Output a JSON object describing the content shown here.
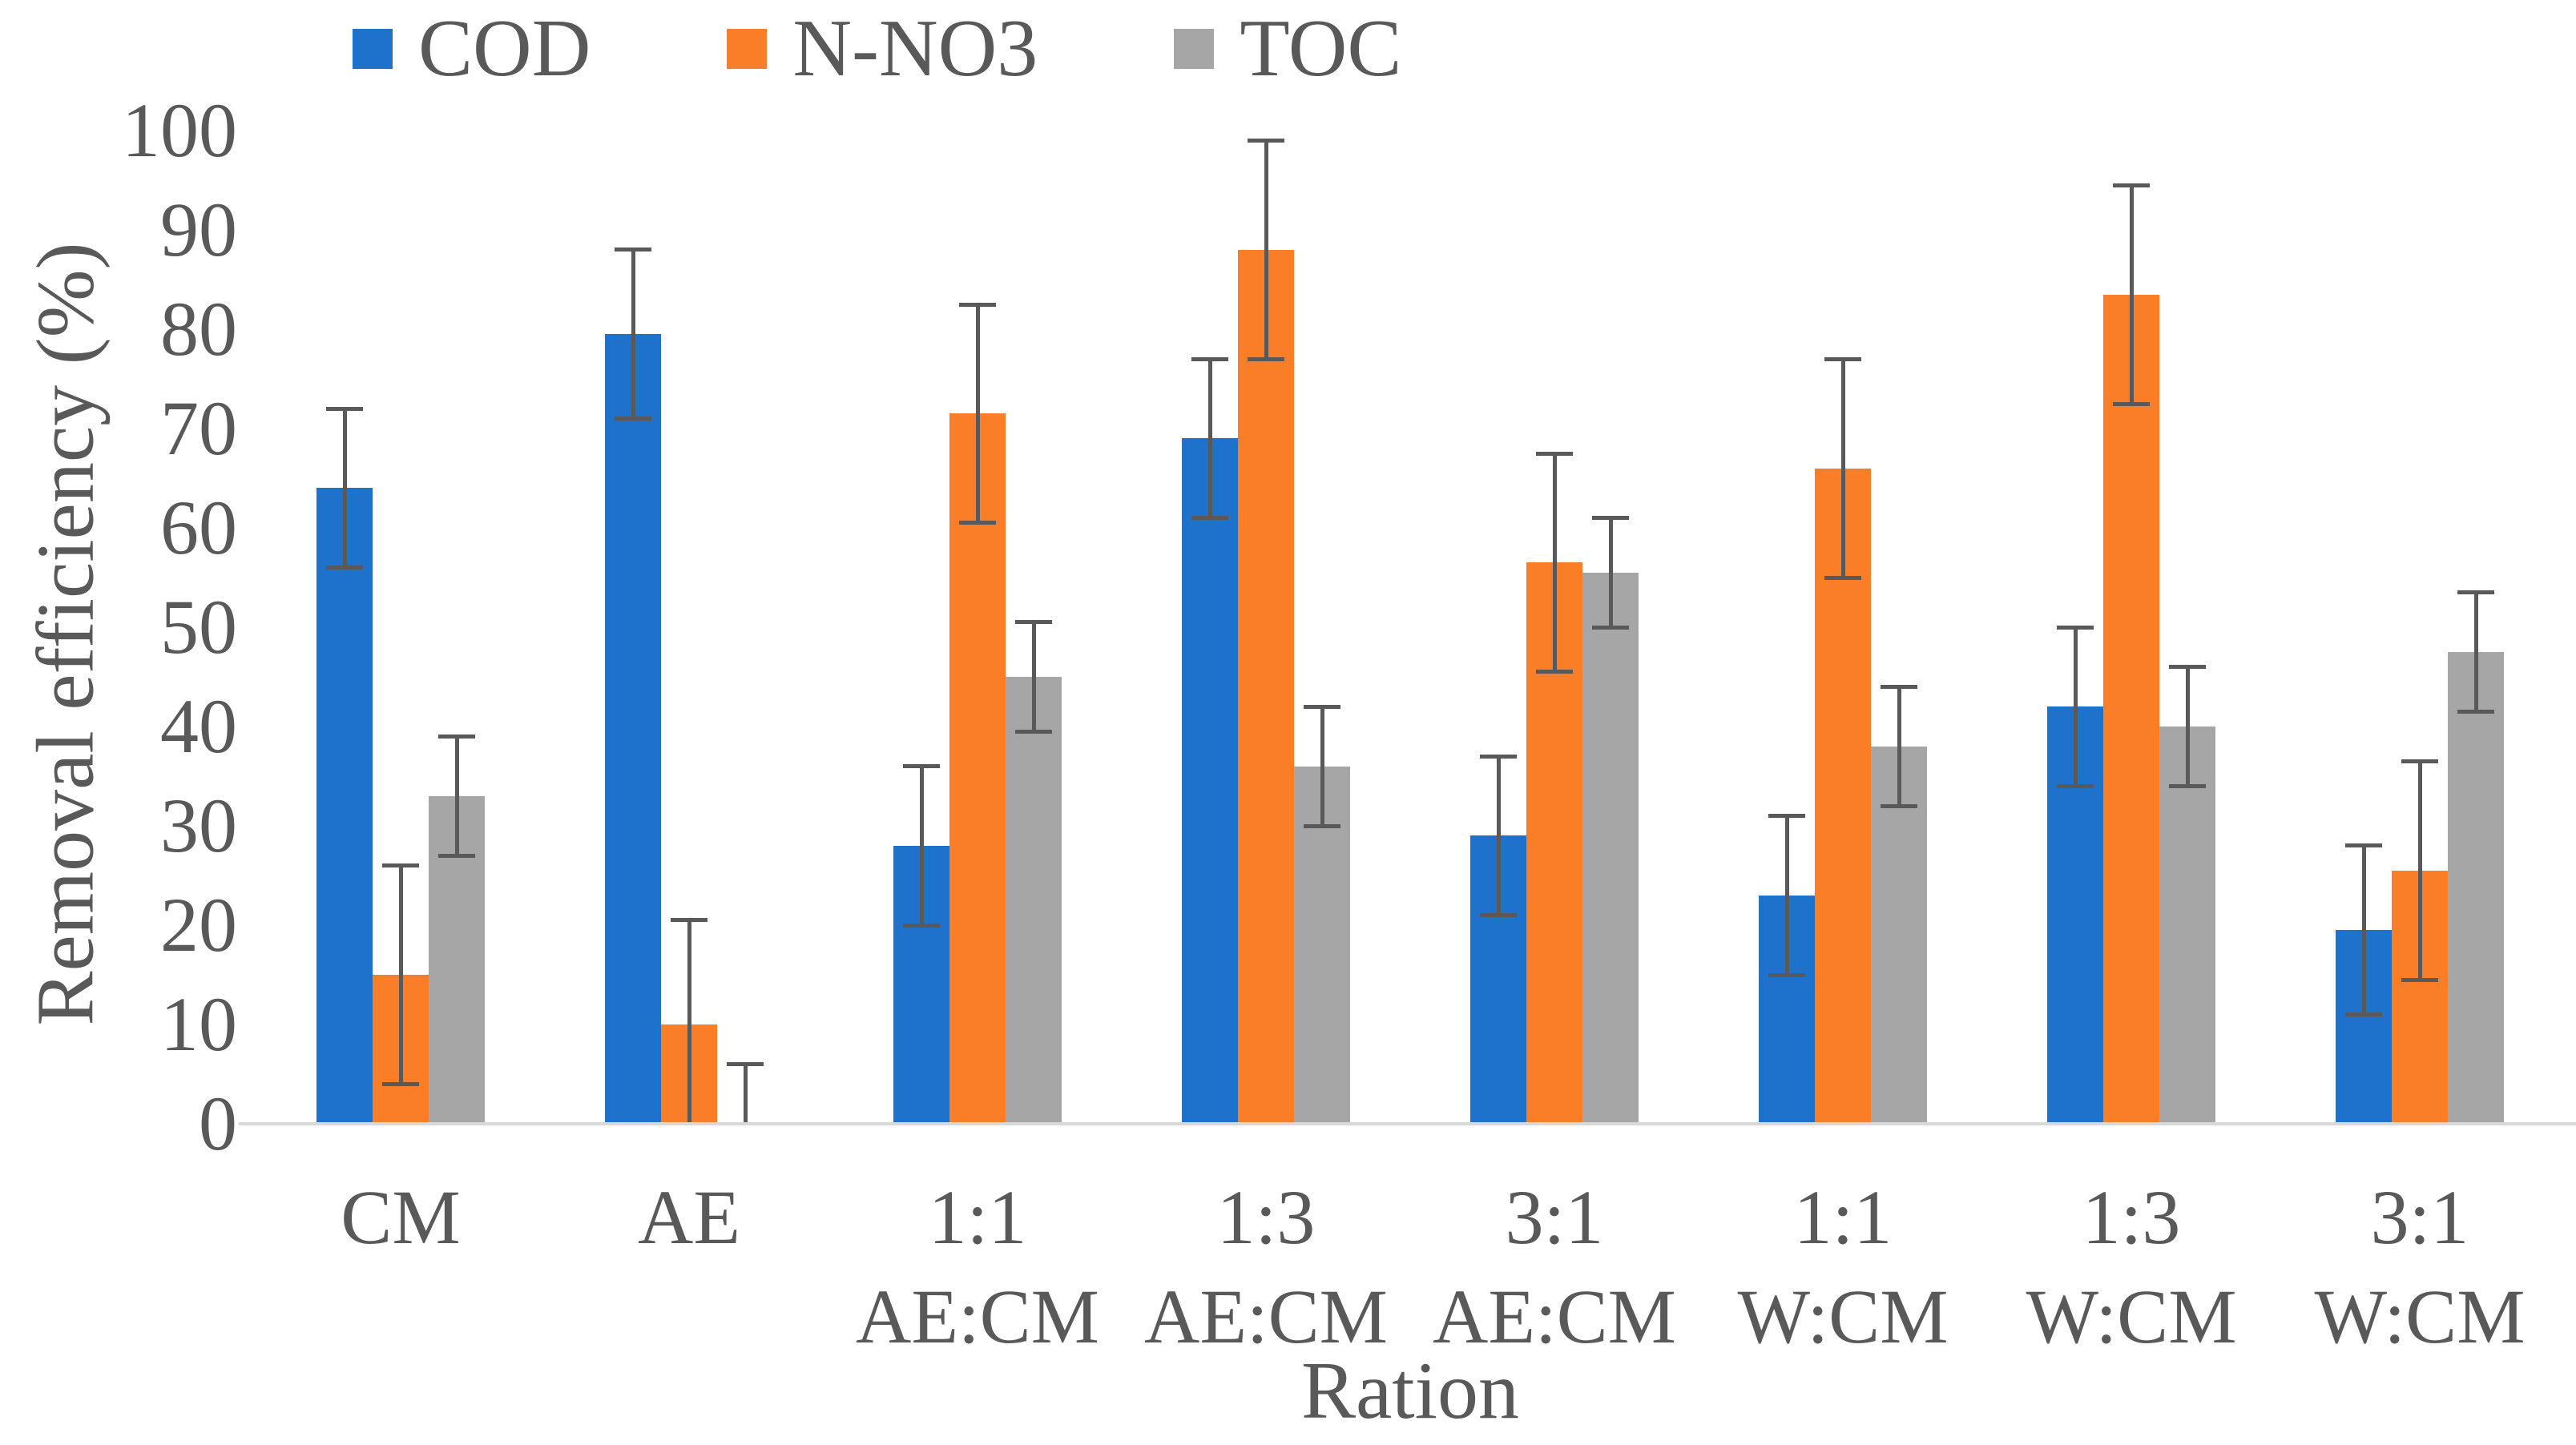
{
  "chart_data": {
    "type": "bar",
    "title": "",
    "xlabel": "Ration",
    "ylabel": "Removal efficiency (%)",
    "ylim": [
      0,
      100
    ],
    "yticks": [
      0,
      10,
      20,
      30,
      40,
      50,
      60,
      70,
      80,
      90,
      100
    ],
    "grid": false,
    "legend_position": "top",
    "error_bars": true,
    "categories": [
      [
        "CM"
      ],
      [
        "AE"
      ],
      [
        "1:1",
        "AE:CM"
      ],
      [
        "1:3",
        "AE:CM"
      ],
      [
        "3:1",
        "AE:CM"
      ],
      [
        "1:1",
        "W:CM"
      ],
      [
        "1:3",
        "W:CM"
      ],
      [
        "3:1",
        "W:CM"
      ]
    ],
    "series": [
      {
        "name": "COD",
        "color": "#1f72cc",
        "values": [
          64,
          79.5,
          28,
          69,
          29,
          23,
          42,
          19.5
        ],
        "errors": [
          8,
          8.5,
          8,
          8,
          8,
          8,
          8,
          8.5
        ]
      },
      {
        "name": "N-NO3",
        "color": "#f97e27",
        "values": [
          15,
          10,
          71.5,
          88,
          56.5,
          66,
          83.5,
          25.5
        ],
        "errors": [
          11,
          10.5,
          11,
          11,
          11,
          11,
          11,
          11
        ]
      },
      {
        "name": "TOC",
        "color": "#a6a6a6",
        "values": [
          33,
          0,
          45,
          36,
          55.5,
          38,
          40,
          47.5
        ],
        "errors": [
          6,
          6,
          5.5,
          6,
          5.5,
          6,
          6,
          6
        ]
      }
    ],
    "colors": {
      "text": "#595959",
      "axis_line": "#d9d9d9",
      "error_bar": "#595959"
    }
  }
}
